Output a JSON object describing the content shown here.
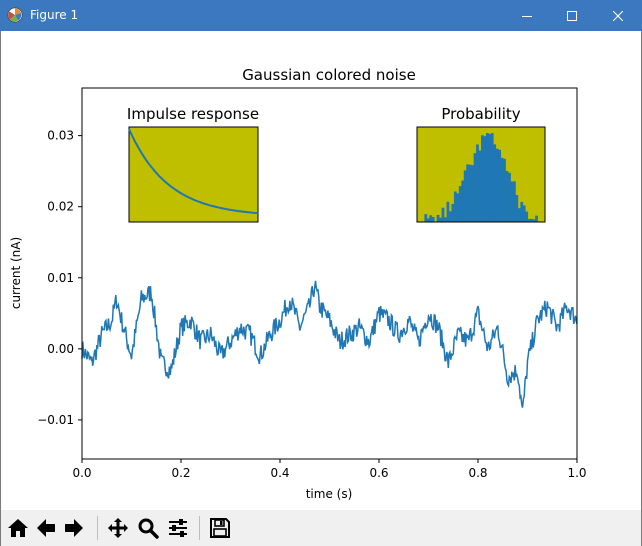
{
  "window": {
    "title": "Figure 1",
    "controls": [
      "minimize",
      "maximize",
      "close"
    ]
  },
  "toolbar": {
    "buttons": [
      {
        "name": "home-icon",
        "tooltip": "Reset original view"
      },
      {
        "name": "back-arrow-icon",
        "tooltip": "Back to previous view"
      },
      {
        "name": "forward-arrow-icon",
        "tooltip": "Forward to next view"
      },
      {
        "name": "pan-move-icon",
        "tooltip": "Pan axes"
      },
      {
        "name": "zoom-magnifier-icon",
        "tooltip": "Zoom to rectangle"
      },
      {
        "name": "configure-subplots-icon",
        "tooltip": "Configure subplots"
      },
      {
        "name": "save-floppy-icon",
        "tooltip": "Save the figure"
      }
    ]
  },
  "colors": {
    "titlebar": "#3c78c0",
    "line": "#1f77b4",
    "inset_bg": "#bfbf00"
  },
  "chart_data": [
    {
      "type": "line",
      "title": "Gaussian colored noise",
      "xlabel": "time (s)",
      "ylabel": "current (nA)",
      "xlim": [
        0.0,
        1.0
      ],
      "ylim": [
        -0.0155,
        0.0367
      ],
      "xticks": [
        0.0,
        0.2,
        0.4,
        0.6,
        0.8,
        1.0
      ],
      "xtick_labels": [
        "0.0",
        "0.2",
        "0.4",
        "0.6",
        "0.8",
        "1.0"
      ],
      "yticks": [
        -0.01,
        0.0,
        0.01,
        0.02,
        0.03
      ],
      "ytick_labels": [
        "−0.01",
        "0.00",
        "0.01",
        "0.02",
        "0.03"
      ],
      "grid": false,
      "series": [
        {
          "x": [
            0.0,
            0.02,
            0.04,
            0.06,
            0.07,
            0.08,
            0.1,
            0.12,
            0.14,
            0.16,
            0.18,
            0.2,
            0.22,
            0.24,
            0.26,
            0.28,
            0.3,
            0.32,
            0.34,
            0.36,
            0.38,
            0.4,
            0.42,
            0.44,
            0.46,
            0.47,
            0.48,
            0.5,
            0.52,
            0.54,
            0.56,
            0.58,
            0.6,
            0.62,
            0.64,
            0.66,
            0.68,
            0.7,
            0.72,
            0.74,
            0.76,
            0.78,
            0.8,
            0.82,
            0.84,
            0.86,
            0.88,
            0.89,
            0.9,
            0.92,
            0.94,
            0.96,
            0.98,
            1.0
          ],
          "y": [
            0.0,
            -0.002,
            0.002,
            0.004,
            0.007,
            0.004,
            -0.001,
            0.007,
            0.008,
            -0.002,
            -0.003,
            0.003,
            0.004,
            0.001,
            0.002,
            -0.001,
            0.001,
            0.003,
            0.002,
            -0.001,
            0.002,
            0.004,
            0.007,
            0.003,
            0.006,
            0.009,
            0.006,
            0.004,
            0.001,
            0.002,
            0.003,
            0.001,
            0.005,
            0.004,
            0.002,
            0.004,
            0.001,
            0.005,
            0.003,
            -0.002,
            0.002,
            0.001,
            0.005,
            0.0,
            0.003,
            -0.004,
            -0.003,
            -0.009,
            -0.002,
            0.004,
            0.006,
            0.003,
            0.006,
            0.004
          ]
        }
      ]
    },
    {
      "type": "line",
      "title": "Impulse response",
      "series": [
        {
          "x": [
            0,
            0.1,
            0.2,
            0.3,
            0.4,
            0.5,
            0.6,
            0.7,
            0.8,
            0.9,
            1.0
          ],
          "y": [
            1.0,
            0.72,
            0.52,
            0.38,
            0.28,
            0.2,
            0.15,
            0.11,
            0.08,
            0.06,
            0.05
          ]
        }
      ]
    },
    {
      "type": "bar",
      "title": "Probability",
      "values": [
        0,
        0,
        1,
        1,
        2,
        2,
        3,
        4,
        5,
        7,
        9,
        11,
        14,
        18,
        22,
        27,
        32,
        38,
        44,
        50,
        56,
        62,
        68,
        74,
        80,
        86,
        90,
        95,
        98,
        100,
        97,
        92,
        86,
        80,
        74,
        68,
        60,
        52,
        44,
        37,
        30,
        24,
        19,
        14,
        10,
        7,
        5,
        3,
        2,
        1,
        1,
        0
      ]
    }
  ]
}
